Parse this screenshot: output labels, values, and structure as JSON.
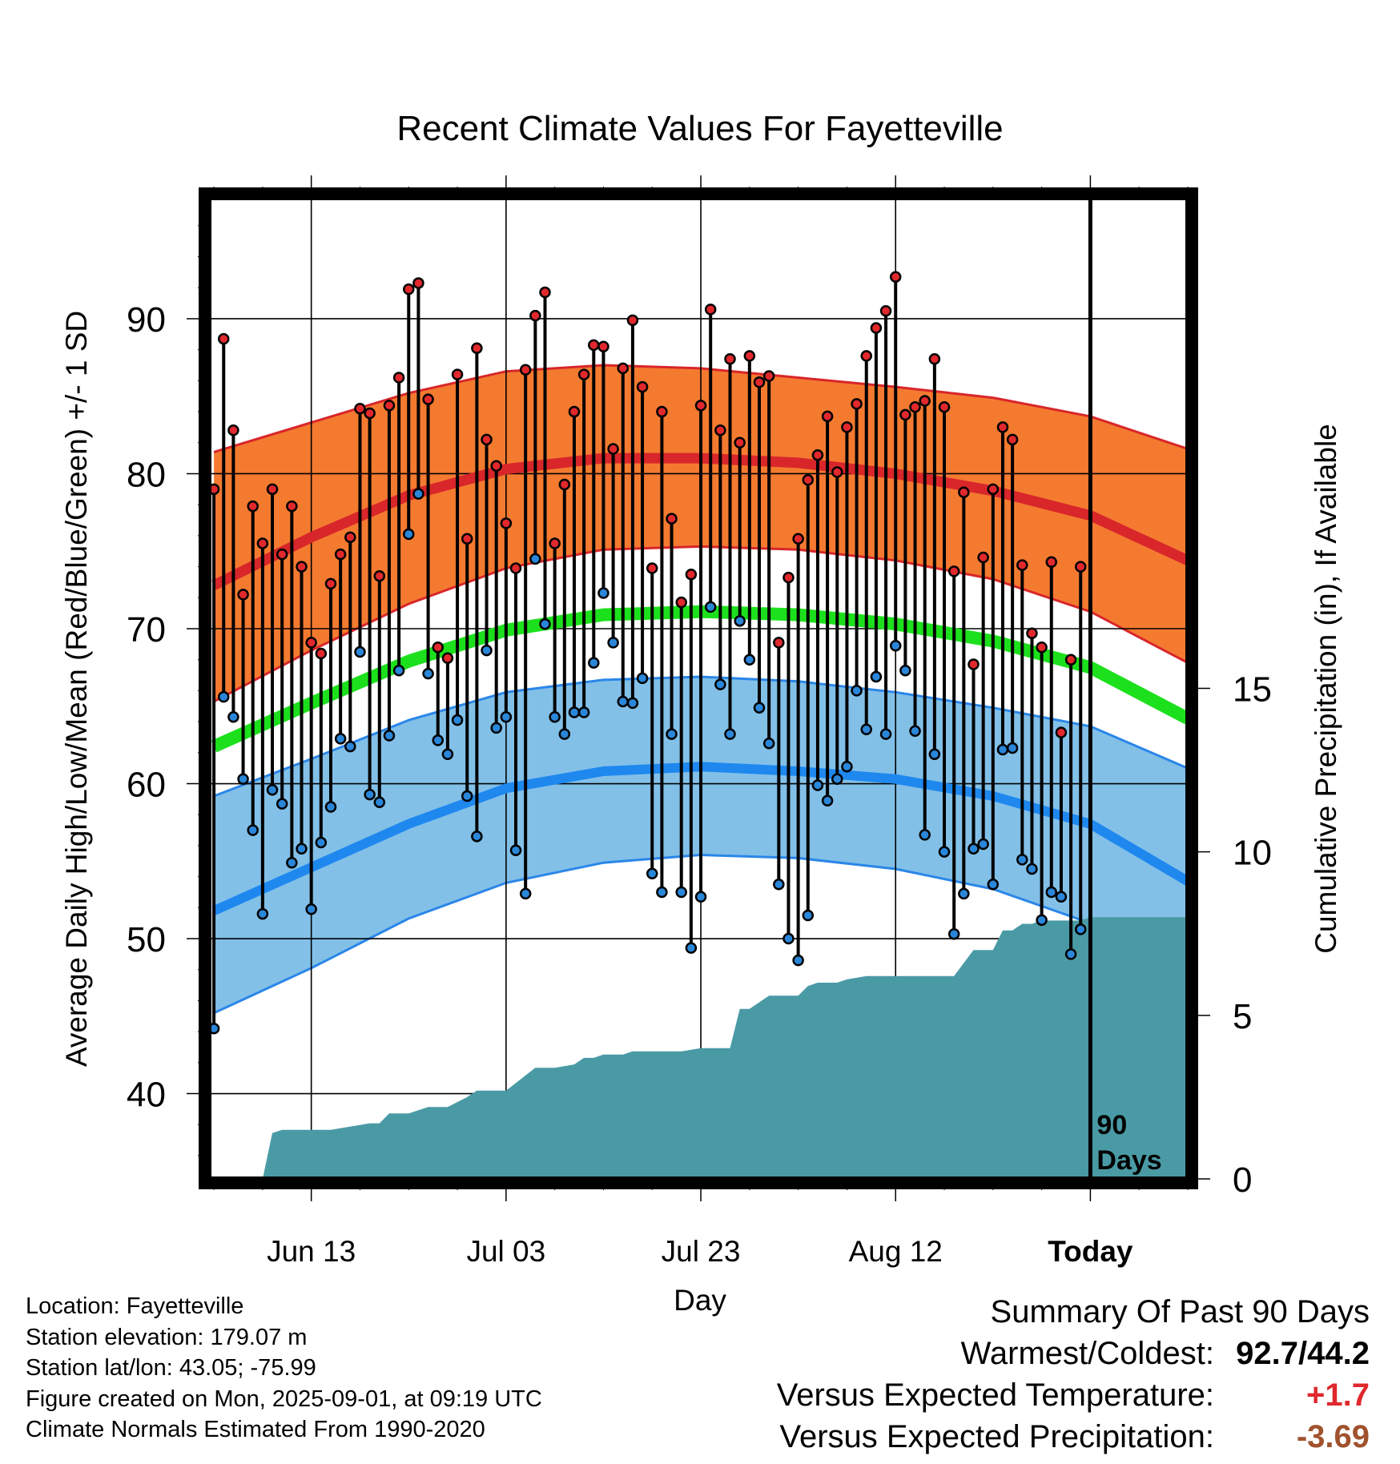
{
  "chart_data": {
    "type": "line",
    "title": "Recent Climate Values For Fayetteville",
    "xlabel": "Day",
    "ylabel": "Average Daily High/Low/Mean (Red/Blue/Green) +/- 1 SD",
    "y2label": "Cumulative Precipitation (in), If Available",
    "ylim": [
      34.5,
      97.8
    ],
    "y2lim": [
      0,
      30
    ],
    "yticks": [
      "40",
      "50",
      "60",
      "70",
      "80",
      "90"
    ],
    "y2ticks": [
      "0",
      "5",
      "10",
      "15"
    ],
    "xtick_labels": [
      "Jun 13",
      "Jul 03",
      "Jul 23",
      "Aug 12",
      "Today"
    ],
    "xtick_days": [
      10,
      30,
      50,
      70,
      90
    ],
    "xlim": [
      -0.5,
      100
    ],
    "grid": true,
    "today_day": 90,
    "window_label_line1": "90",
    "window_label_line2": "Days",
    "days": [
      0,
      1,
      2,
      3,
      4,
      5,
      6,
      7,
      8,
      9,
      10,
      11,
      12,
      13,
      14,
      15,
      16,
      17,
      18,
      19,
      20,
      21,
      22,
      23,
      24,
      25,
      26,
      27,
      28,
      29,
      30,
      31,
      32,
      33,
      34,
      35,
      36,
      37,
      38,
      39,
      40,
      41,
      42,
      43,
      44,
      45,
      46,
      47,
      48,
      49,
      50,
      51,
      52,
      53,
      54,
      55,
      56,
      57,
      58,
      59,
      60,
      61,
      62,
      63,
      64,
      65,
      66,
      67,
      68,
      69,
      70,
      71,
      72,
      73,
      74,
      75,
      76,
      77,
      78,
      79,
      80,
      81,
      82,
      83,
      84,
      85,
      86,
      87,
      88,
      89
    ],
    "series": [
      {
        "name": "Daily High",
        "color": "#e0282d",
        "values": [
          79.0,
          88.7,
          82.8,
          72.2,
          77.9,
          75.5,
          79.0,
          74.8,
          77.9,
          74.0,
          69.1,
          68.4,
          72.9,
          74.8,
          75.9,
          84.2,
          83.9,
          73.4,
          84.4,
          86.2,
          91.9,
          92.3,
          84.8,
          68.8,
          68.1,
          86.4,
          75.8,
          88.1,
          82.2,
          80.5,
          76.8,
          73.9,
          86.7,
          90.2,
          91.7,
          75.5,
          79.3,
          84.0,
          86.4,
          88.3,
          88.2,
          81.6,
          86.8,
          89.9,
          85.6,
          73.9,
          84.0,
          77.1,
          71.7,
          73.5,
          84.4,
          90.6,
          82.8,
          87.4,
          82.0,
          87.6,
          85.9,
          86.3,
          69.1,
          73.3,
          75.8,
          79.6,
          81.2,
          83.7,
          80.1,
          83.0,
          84.5,
          87.6,
          89.4,
          90.5,
          92.7,
          83.8,
          84.3,
          84.7,
          87.4,
          84.3,
          73.7,
          78.8,
          67.7,
          74.6,
          79.0,
          83.0,
          82.2,
          74.1,
          69.7,
          68.8,
          74.3,
          63.3,
          68.0,
          74.0
        ]
      },
      {
        "name": "Daily Low",
        "color": "#2a86d8",
        "values": [
          44.2,
          65.6,
          64.3,
          60.3,
          57.0,
          51.6,
          59.6,
          58.7,
          54.9,
          55.8,
          51.9,
          56.2,
          58.5,
          62.9,
          62.4,
          68.5,
          59.3,
          58.8,
          63.1,
          67.3,
          76.1,
          78.7,
          67.1,
          62.8,
          61.9,
          64.1,
          59.2,
          56.6,
          68.6,
          63.6,
          64.3,
          55.7,
          52.9,
          74.5,
          70.3,
          64.3,
          63.2,
          64.6,
          64.6,
          67.8,
          72.3,
          69.1,
          65.3,
          65.2,
          66.8,
          54.2,
          53.0,
          63.2,
          53.0,
          49.4,
          52.7,
          71.4,
          66.4,
          63.2,
          70.5,
          68.0,
          64.9,
          62.6,
          53.5,
          50.0,
          48.6,
          51.5,
          59.9,
          58.9,
          60.3,
          61.1,
          66.0,
          63.5,
          66.9,
          63.2,
          68.9,
          67.3,
          63.4,
          56.7,
          61.9,
          55.6,
          50.3,
          52.9,
          55.8,
          56.1,
          53.5,
          62.2,
          62.3,
          55.1,
          54.5,
          51.2,
          53.0,
          52.7,
          49.0,
          50.6
        ]
      }
    ],
    "normal_high_mean": {
      "day": [
        0,
        10,
        20,
        30,
        40,
        50,
        60,
        70,
        80,
        90,
        100
      ],
      "values": [
        72.8,
        75.9,
        78.6,
        80.3,
        81.0,
        81.0,
        80.7,
        80.0,
        78.9,
        77.3,
        74.4
      ]
    },
    "normal_high_upper": {
      "day": [
        0,
        10,
        20,
        30,
        40,
        50,
        60,
        70,
        80,
        90,
        100
      ],
      "values": [
        81.4,
        83.3,
        85.2,
        86.6,
        87.0,
        86.8,
        86.2,
        85.6,
        84.9,
        83.7,
        81.6
      ]
    },
    "normal_high_lower": {
      "day": [
        0,
        10,
        20,
        30,
        40,
        50,
        60,
        70,
        80,
        90,
        100
      ],
      "values": [
        65.3,
        68.6,
        71.6,
        73.9,
        75.1,
        75.3,
        75.1,
        74.4,
        73.2,
        71.1,
        67.8
      ]
    },
    "normal_mean": {
      "day": [
        0,
        10,
        20,
        30,
        40,
        50,
        60,
        70,
        80,
        90,
        100
      ],
      "values": [
        62.4,
        65.2,
        67.9,
        69.9,
        70.9,
        71.1,
        70.9,
        70.3,
        69.2,
        67.5,
        64.2
      ],
      "color": "#1de01d"
    },
    "normal_low_mean": {
      "day": [
        0,
        10,
        20,
        30,
        40,
        50,
        60,
        70,
        80,
        90,
        100
      ],
      "values": [
        51.8,
        54.6,
        57.4,
        59.7,
        60.8,
        61.1,
        60.8,
        60.3,
        59.2,
        57.4,
        53.7
      ]
    },
    "normal_low_upper": {
      "day": [
        0,
        10,
        20,
        30,
        40,
        50,
        60,
        70,
        80,
        90,
        100
      ],
      "values": [
        59.2,
        61.6,
        64.1,
        65.9,
        66.7,
        66.9,
        66.6,
        65.9,
        64.9,
        63.7,
        61.0
      ]
    },
    "normal_low_lower": {
      "day": [
        0,
        10,
        20,
        30,
        40,
        50,
        60,
        70,
        80,
        90,
        100
      ],
      "values": [
        45.2,
        48.1,
        51.3,
        53.6,
        54.9,
        55.4,
        55.2,
        54.5,
        53.2,
        51.0,
        46.9
      ]
    },
    "cumulative_precipitation": {
      "color": "#4a9aa5",
      "day": [
        0,
        5,
        6,
        7,
        12,
        16,
        17,
        18,
        19,
        20,
        22,
        24,
        26,
        27,
        28,
        29,
        30,
        33,
        34,
        35,
        37,
        38,
        39,
        40,
        41,
        42,
        43,
        45,
        48,
        50,
        51,
        53,
        54,
        55,
        57,
        58,
        60,
        61,
        62,
        63,
        64,
        65,
        67,
        68,
        70,
        72,
        74,
        76,
        77,
        78,
        79,
        80,
        81,
        82,
        83,
        84,
        85,
        86,
        88,
        89,
        90,
        94,
        100
      ],
      "values": [
        0,
        0,
        1.4,
        1.5,
        1.5,
        1.7,
        1.7,
        2.0,
        2.0,
        2.0,
        2.2,
        2.2,
        2.5,
        2.7,
        2.7,
        2.7,
        2.7,
        3.4,
        3.4,
        3.4,
        3.5,
        3.7,
        3.7,
        3.8,
        3.8,
        3.8,
        3.9,
        3.9,
        3.9,
        4.0,
        4.0,
        4.0,
        5.2,
        5.2,
        5.6,
        5.6,
        5.6,
        5.9,
        6.0,
        6.0,
        6.0,
        6.1,
        6.2,
        6.2,
        6.2,
        6.2,
        6.2,
        6.2,
        6.6,
        7.0,
        7.0,
        7.0,
        7.6,
        7.6,
        7.8,
        7.8,
        7.9,
        7.9,
        7.9,
        7.9,
        8.0,
        8.0,
        8.0
      ]
    }
  },
  "footer": {
    "location": "Location: Fayetteville",
    "elevation": "Station elevation: 179.07 m",
    "latlon": "Station lat/lon: 43.05; -75.99",
    "created": "Figure created on Mon, 2025-09-01, at 09:19 UTC",
    "normals": "Climate Normals Estimated From 1990-2020"
  },
  "summary": {
    "title": "Summary Of Past 90 Days",
    "warm_cold_label": "Warmest/Coldest:",
    "warm_cold_value": "92.7/44.2",
    "temp_label": "Versus Expected Temperature:",
    "temp_value": "+1.7",
    "temp_color": "#e0282d",
    "precip_label": "Versus Expected Precipitation:",
    "precip_value": "-3.69",
    "precip_color": "#a0522d"
  }
}
